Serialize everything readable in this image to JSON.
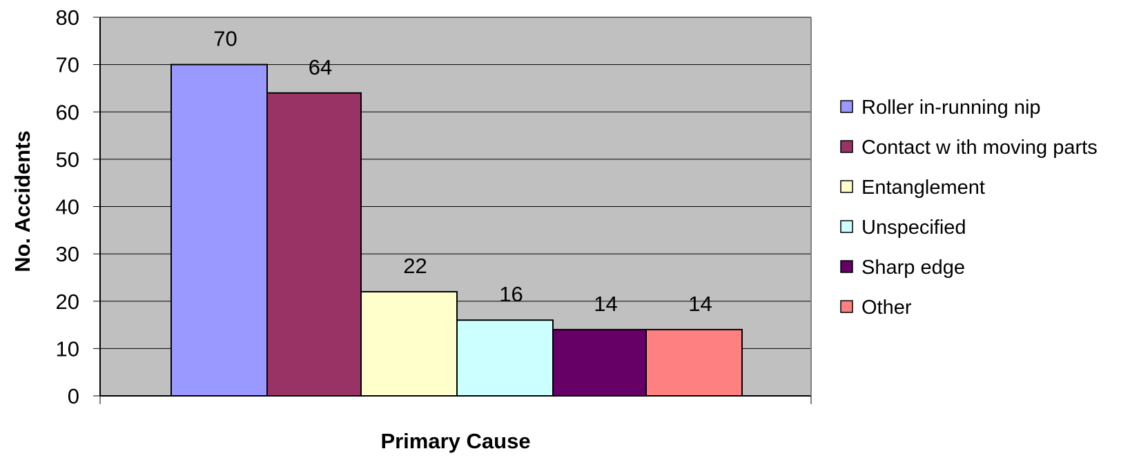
{
  "chart_data": {
    "type": "bar",
    "categories": [
      "Roller in-running nip",
      "Contact w ith moving parts",
      "Entanglement",
      "Unspecified",
      "Sharp edge",
      "Other"
    ],
    "values": [
      70,
      64,
      22,
      16,
      14,
      14
    ],
    "data_labels": [
      "70",
      "64",
      "22",
      "16",
      "14",
      "14"
    ],
    "colors": [
      "#9999ff",
      "#993366",
      "#ffffcc",
      "#ccffff",
      "#660066",
      "#ff8080"
    ],
    "plot_background": "#c0c0c0",
    "xlabel": "Primary Cause",
    "ylabel": "No. Accidents",
    "ylim": [
      0,
      80
    ],
    "yticks": [
      "0",
      "10",
      "20",
      "30",
      "40",
      "50",
      "60",
      "70",
      "80"
    ],
    "grid": true,
    "legend_position": "right"
  }
}
